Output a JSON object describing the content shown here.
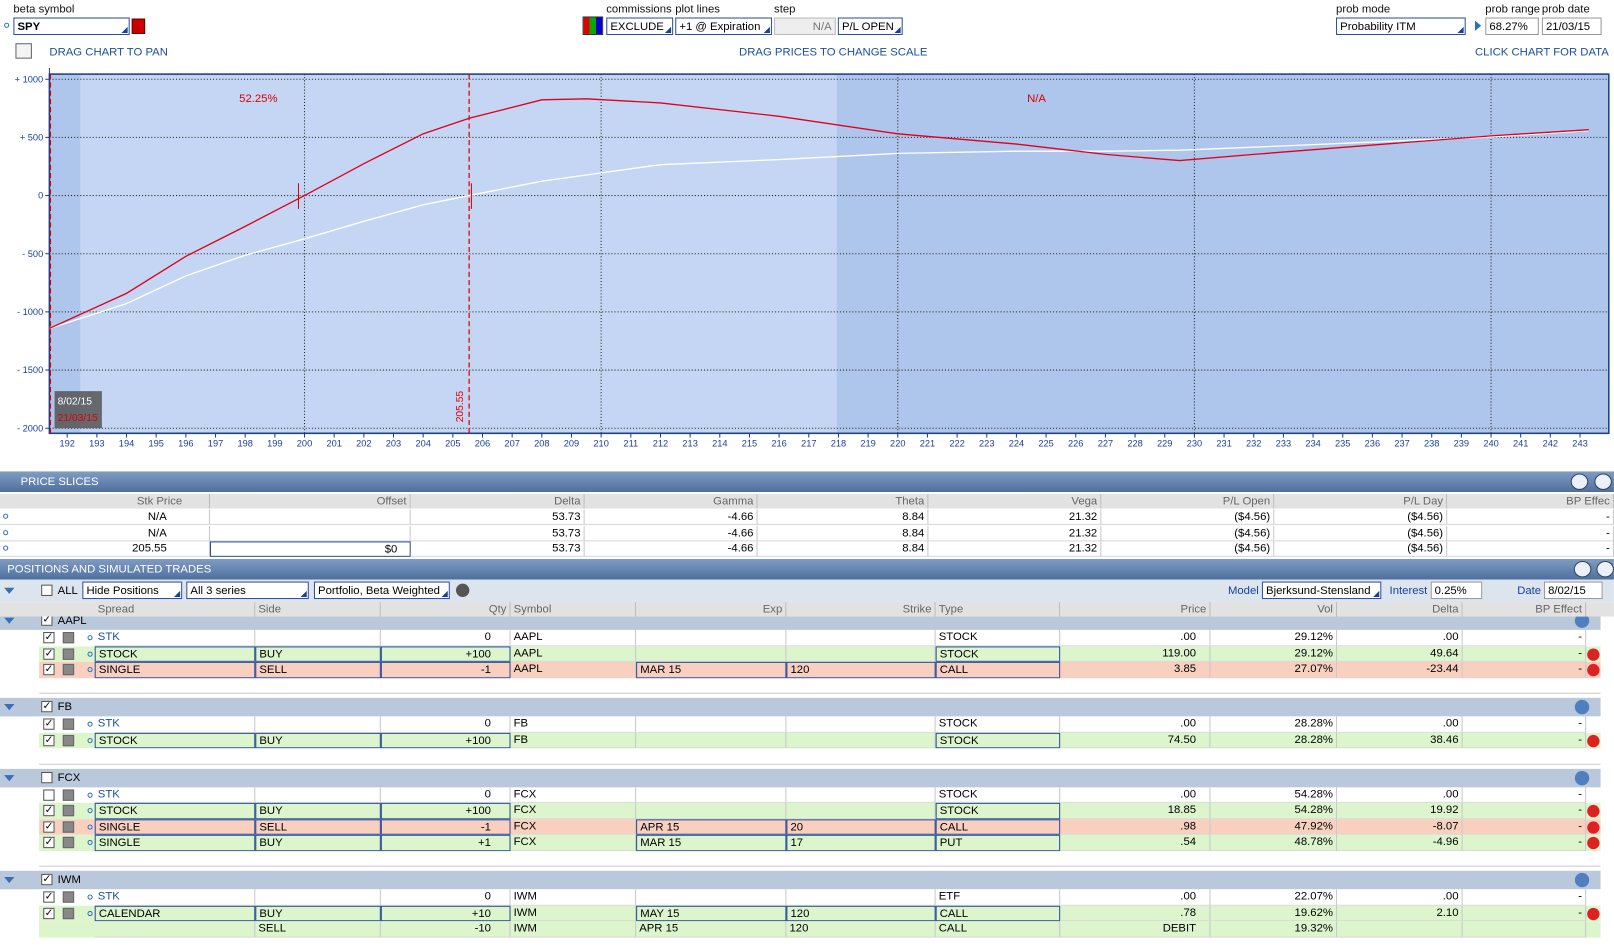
{
  "toolbar": {
    "beta_symbol_label": "beta symbol",
    "beta_symbol": "SPY",
    "commissions_label": "commissions",
    "commissions": "EXCLUDE",
    "plot_lines_label": "plot lines",
    "plot_lines": "+1 @ Expiration",
    "step_label": "step",
    "step": "N/A",
    "pl_mode": "P/L OPEN",
    "prob_mode_label": "prob mode",
    "prob_mode": "Probability ITM",
    "prob_range_label": "prob range",
    "prob_range": "68.27%",
    "prob_date_label": "prob date",
    "prob_date": "21/03/15",
    "hint_pan": "DRAG CHART TO PAN",
    "hint_scale": "DRAG PRICES TO CHANGE SCALE",
    "hint_data": "CLICK CHART FOR DATA"
  },
  "chart_data": {
    "type": "line",
    "x": [
      191.4,
      194,
      196,
      198,
      200,
      202,
      204,
      205.55,
      208,
      209.5,
      212,
      216,
      220,
      224,
      227,
      229.5,
      232,
      236,
      240,
      243.3
    ],
    "series": [
      {
        "color": "#e0001b",
        "values": [
          -1142,
          -841,
          -522,
          -265,
          0,
          274,
          531,
          664,
          823,
          832,
          796,
          681,
          531,
          442,
          354,
          301,
          354,
          434,
          513,
          566
        ]
      },
      {
        "color": "#ffffff",
        "values": [
          -1142,
          -929,
          -690,
          -513,
          -372,
          -221,
          -80,
          0,
          124,
          177,
          265,
          310,
          363,
          381,
          381,
          390,
          416,
          460,
          504,
          558
        ]
      }
    ],
    "xlim": [
      191.4,
      243.97
    ],
    "ylim": [
      -2044,
      1044
    ],
    "xticks": [
      192,
      193,
      194,
      195,
      196,
      197,
      198,
      199,
      200,
      201,
      202,
      203,
      204,
      205,
      206,
      207,
      208,
      209,
      210,
      211,
      212,
      213,
      214,
      215,
      216,
      217,
      218,
      219,
      220,
      221,
      222,
      223,
      224,
      225,
      226,
      227,
      228,
      229,
      230,
      231,
      232,
      233,
      234,
      235,
      236,
      237,
      238,
      239,
      240,
      241,
      242,
      243
    ],
    "yticks": [
      {
        "value": 1000,
        "label": "+ 1000"
      },
      {
        "value": 500,
        "label": "+ 500"
      },
      0,
      {
        "value": -500,
        "label": "- 500"
      },
      {
        "value": -1000,
        "label": "- 1000"
      },
      {
        "value": -1500,
        "label": "- 1500"
      },
      {
        "value": -2000,
        "label": "- 2000"
      }
    ],
    "grid": true,
    "annotations": [
      "52.25%",
      "N/A"
    ],
    "marker_line": {
      "value": 205.55,
      "label": "205.55"
    },
    "date_labels": [
      "8/02/15",
      "21/03/15"
    ]
  },
  "price_slices": {
    "title": "PRICE SLICES",
    "columns": [
      "Stk Price",
      "Offset",
      "Delta",
      "Gamma",
      "Theta",
      "Vega",
      "P/L Open",
      "P/L Day",
      "BP Effec"
    ],
    "rows": [
      [
        "N/A",
        null,
        "53.73",
        "-4.66",
        "8.84",
        "21.32",
        "($4.56)",
        "($4.56)",
        "-"
      ],
      [
        "N/A",
        null,
        "53.73",
        "-4.66",
        "8.84",
        "21.32",
        "($4.56)",
        "($4.56)",
        "-"
      ],
      [
        "205.55",
        "$0",
        "53.73",
        "-4.66",
        "8.84",
        "21.32",
        "($4.56)",
        "($4.56)",
        "-"
      ]
    ]
  },
  "positions": {
    "title": "POSITIONS AND SIMULATED TRADES",
    "all": "ALL",
    "filter": "Hide Positions",
    "series": "All 3 series",
    "view": "Portfolio, Beta Weighted",
    "model_label": "Model",
    "model": "Bjerksund-Stensland",
    "interest_label": "Interest",
    "interest": "0.25%",
    "date_label": "Date",
    "date": "8/02/15",
    "columns": [
      "Spread",
      "Side",
      "Qty",
      "Symbol",
      "Exp",
      "Strike",
      "Type",
      "Price",
      "Vol",
      "Delta",
      "BP Effect"
    ],
    "groups": [
      {
        "name": "AAPL",
        "checked": true,
        "rows": [
          {
            "cells": [
              "STK",
              null,
              "0",
              "AAPL",
              null,
              null,
              "STOCK",
              ".00",
              "29.12%",
              ".00",
              "-"
            ],
            "color": "#ffffff",
            "checked": true
          },
          {
            "cells": [
              "STOCK",
              "BUY",
              "+100",
              "AAPL",
              null,
              null,
              "STOCK",
              "119.00",
              "29.12%",
              "49.64",
              "-"
            ],
            "color": "#dcf5cc",
            "checked": true
          },
          {
            "cells": [
              "SINGLE",
              "SELL",
              "-1",
              "AAPL",
              "MAR 15",
              "120",
              "CALL",
              "3.85",
              "27.07%",
              "-23.44",
              "-"
            ],
            "color": "#f9d0c0",
            "checked": true
          }
        ]
      },
      {
        "name": "FB",
        "checked": true,
        "rows": [
          {
            "cells": [
              "STK",
              null,
              "0",
              "FB",
              null,
              null,
              "STOCK",
              ".00",
              "28.28%",
              ".00",
              "-"
            ],
            "color": "#ffffff",
            "checked": true
          },
          {
            "cells": [
              "STOCK",
              "BUY",
              "+100",
              "FB",
              null,
              null,
              "STOCK",
              "74.50",
              "28.28%",
              "38.46",
              "-"
            ],
            "color": "#dcf5cc",
            "checked": true
          }
        ]
      },
      {
        "name": "FCX",
        "checked": false,
        "rows": [
          {
            "cells": [
              "STK",
              null,
              "0",
              "FCX",
              null,
              null,
              "STOCK",
              ".00",
              "54.28%",
              ".00",
              "-"
            ],
            "color": "#ffffff",
            "checked": false
          },
          {
            "cells": [
              "STOCK",
              "BUY",
              "+100",
              "FCX",
              null,
              null,
              "STOCK",
              "18.85",
              "54.28%",
              "19.92",
              "-"
            ],
            "color": "#dcf5cc",
            "checked": true
          },
          {
            "cells": [
              "SINGLE",
              "SELL",
              "-1",
              "FCX",
              "APR 15",
              "20",
              "CALL",
              ".98",
              "47.92%",
              "-8.07",
              "-"
            ],
            "color": "#f9d0c0",
            "checked": true
          },
          {
            "cells": [
              "SINGLE",
              "BUY",
              "+1",
              "FCX",
              "MAR 15",
              "17",
              "PUT",
              ".54",
              "48.78%",
              "-4.96",
              "-"
            ],
            "color": "#dcf5cc",
            "checked": true
          }
        ]
      },
      {
        "name": "IWM",
        "checked": true,
        "rows": [
          {
            "cells": [
              "STK",
              null,
              "0",
              "IWM",
              null,
              null,
              "ETF",
              ".00",
              "22.07%",
              ".00",
              "-"
            ],
            "color": "#ffffff",
            "checked": true
          },
          {
            "cells": [
              "CALENDAR",
              "BUY",
              "+10",
              "IWM",
              "MAY 15",
              "120",
              "CALL",
              ".78",
              "19.62%",
              "2.10",
              "-"
            ],
            "color": "#dcf5cc",
            "checked": true
          },
          {
            "cells": [
              null,
              "SELL",
              "-10",
              "IWM",
              "APR 15",
              "120",
              "CALL",
              "DEBIT",
              "19.32%",
              null,
              null
            ],
            "color": "#dcf5cc",
            "checked": null
          }
        ]
      }
    ]
  }
}
